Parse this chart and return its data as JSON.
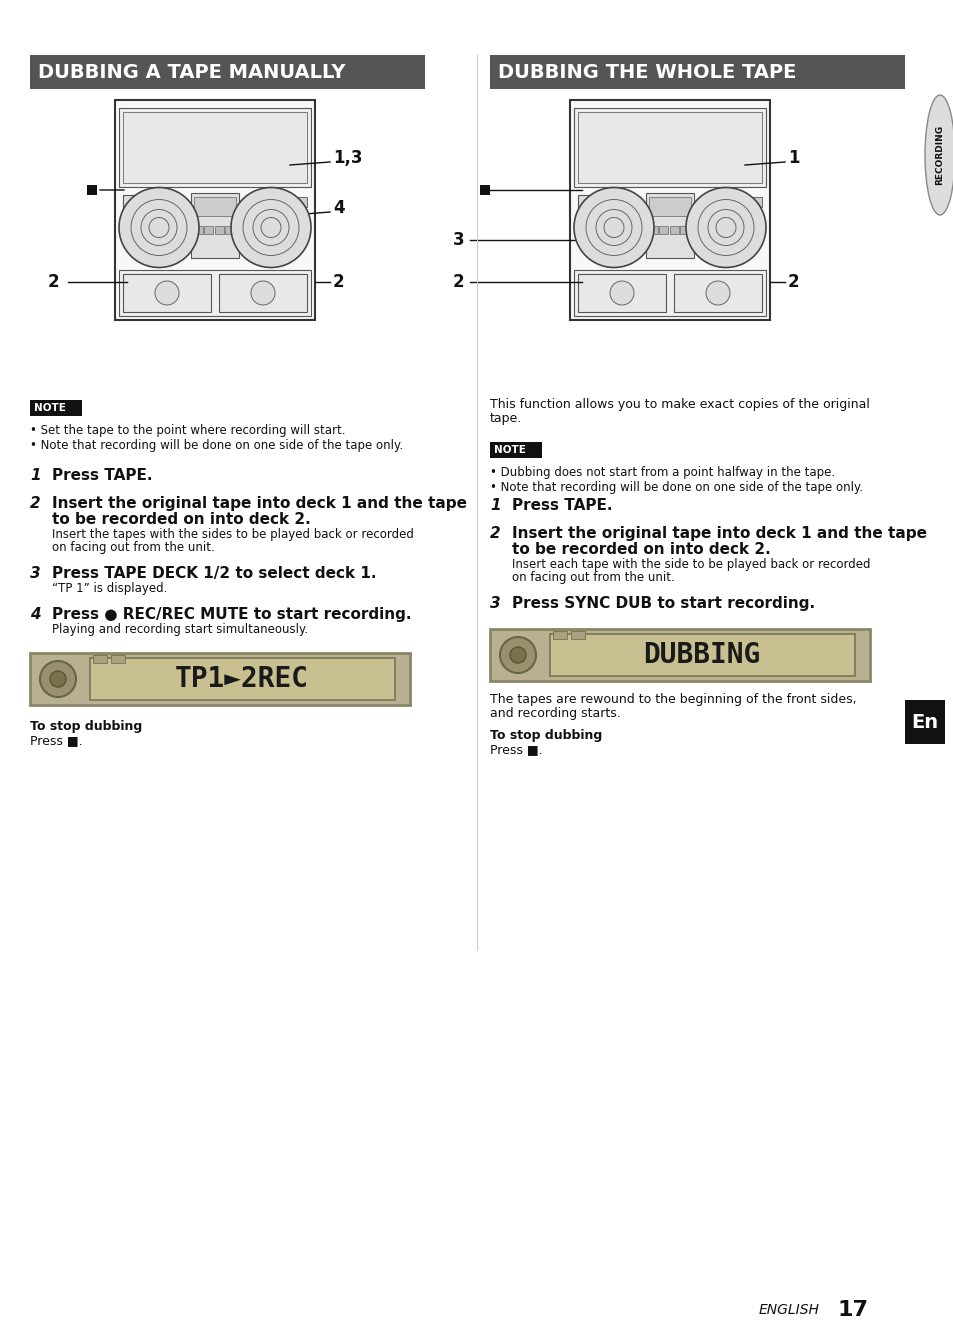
{
  "page_bg": "#ffffff",
  "left_header_text": "DUBBING A TAPE MANUALLY",
  "right_header_text": "DUBBING THE WHOLE TAPE",
  "header_bg": "#555555",
  "header_text_color": "#ffffff",
  "sidebar_text": "RECORDING",
  "sidebar_text_color": "#111111",
  "en_label": "En",
  "en_bg": "#111111",
  "en_text_color": "#ffffff",
  "note_bg": "#111111",
  "note_text_color": "#ffffff",
  "note_label": "NOTE",
  "left_note_bullets": [
    "Set the tape to the point where recording will start.",
    "Note that recording will be done on one side of the tape only."
  ],
  "right_intro_line1": "This function allows you to make exact copies of the original",
  "right_intro_line2": "tape.",
  "right_note_bullets": [
    "Dubbing does not start from a point halfway in the tape.",
    "Note that recording will be done on one side of the tape only."
  ],
  "left_steps": [
    {
      "num": "1",
      "bold": "Press TAPE.",
      "normal": ""
    },
    {
      "num": "2",
      "bold1": "Insert the original tape into deck 1 and the tape",
      "bold2": "to be recorded on into deck 2.",
      "normal1": "Insert the tapes with the sides to be played back or recorded",
      "normal2": "on facing out from the unit."
    },
    {
      "num": "3",
      "bold1": "Press TAPE DECK 1/2 to select deck 1.",
      "bold2": "",
      "normal1": "“TP 1” is displayed.",
      "normal2": ""
    },
    {
      "num": "4",
      "bold1": "Press ● REC/REC MUTE to start recording.",
      "bold2": "",
      "normal1": "Playing and recording start simultaneously.",
      "normal2": ""
    }
  ],
  "right_steps": [
    {
      "num": "1",
      "bold1": "Press TAPE.",
      "bold2": "",
      "normal1": "",
      "normal2": ""
    },
    {
      "num": "2",
      "bold1": "Insert the original tape into deck 1 and the tape",
      "bold2": "to be recorded on into deck 2.",
      "normal1": "Insert each tape with the side to be played back or recorded",
      "normal2": "on facing out from the unit."
    },
    {
      "num": "3",
      "bold1": "Press SYNC DUB to start recording.",
      "bold2": "",
      "normal1": "",
      "normal2": ""
    }
  ],
  "left_stop_label": "To stop dubbing",
  "left_stop_text": "Press ■.",
  "right_stop_label": "To stop dubbing",
  "right_stop_text": "Press ■.",
  "right_after_step3_line1": "The tapes are rewound to the beginning of the front sides,",
  "right_after_step3_line2": "and recording starts.",
  "footer_text": "ENGLISH",
  "footer_num": "17",
  "text_color": "#111111"
}
